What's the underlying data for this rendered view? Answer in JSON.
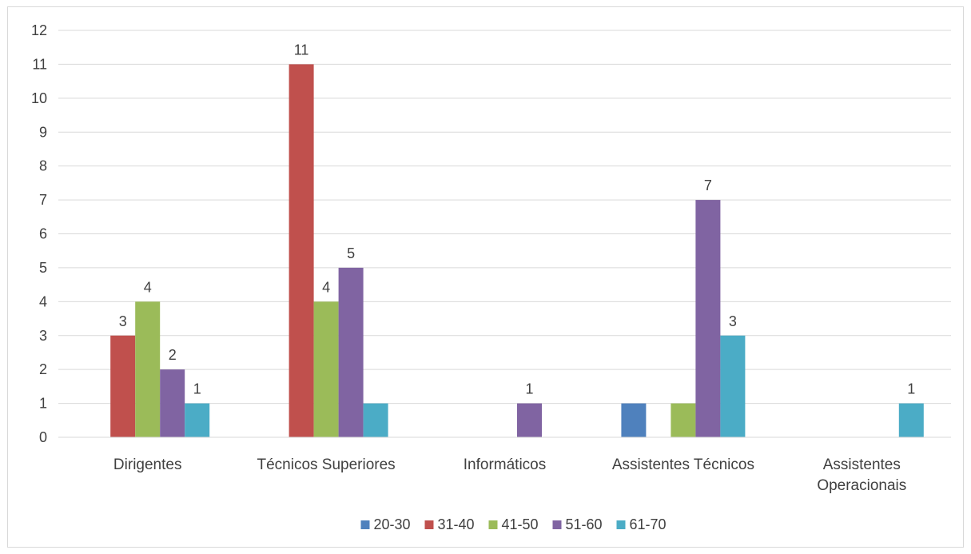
{
  "chart_data": {
    "type": "bar",
    "title": "",
    "xlabel": "",
    "ylabel": "",
    "ylim": [
      0,
      12
    ],
    "yticks": [
      0,
      1,
      2,
      3,
      4,
      5,
      6,
      7,
      8,
      9,
      10,
      11,
      12
    ],
    "grid": true,
    "legend_position": "bottom",
    "categories": [
      [
        "Dirigentes"
      ],
      [
        "Técnicos Superiores"
      ],
      [
        "Informáticos"
      ],
      [
        "Assistentes Técnicos"
      ],
      [
        "Assistentes",
        "Operacionais"
      ]
    ],
    "series": [
      {
        "name": "20-30",
        "color": "#4f81bd",
        "values": [
          0,
          0,
          0,
          1,
          0
        ],
        "labels": [
          false,
          false,
          false,
          false,
          false
        ]
      },
      {
        "name": "31-40",
        "color": "#c0504d",
        "values": [
          3,
          11,
          0,
          0,
          0
        ],
        "labels": [
          true,
          true,
          false,
          false,
          false
        ]
      },
      {
        "name": "41-50",
        "color": "#9bbb59",
        "values": [
          4,
          4,
          0,
          1,
          0
        ],
        "labels": [
          true,
          true,
          false,
          false,
          false
        ]
      },
      {
        "name": "51-60",
        "color": "#8064a2",
        "values": [
          2,
          5,
          1,
          7,
          0
        ],
        "labels": [
          true,
          true,
          true,
          true,
          false
        ]
      },
      {
        "name": "61-70",
        "color": "#4bacc6",
        "values": [
          1,
          1,
          0,
          3,
          1
        ],
        "labels": [
          true,
          false,
          false,
          true,
          true
        ]
      }
    ]
  }
}
